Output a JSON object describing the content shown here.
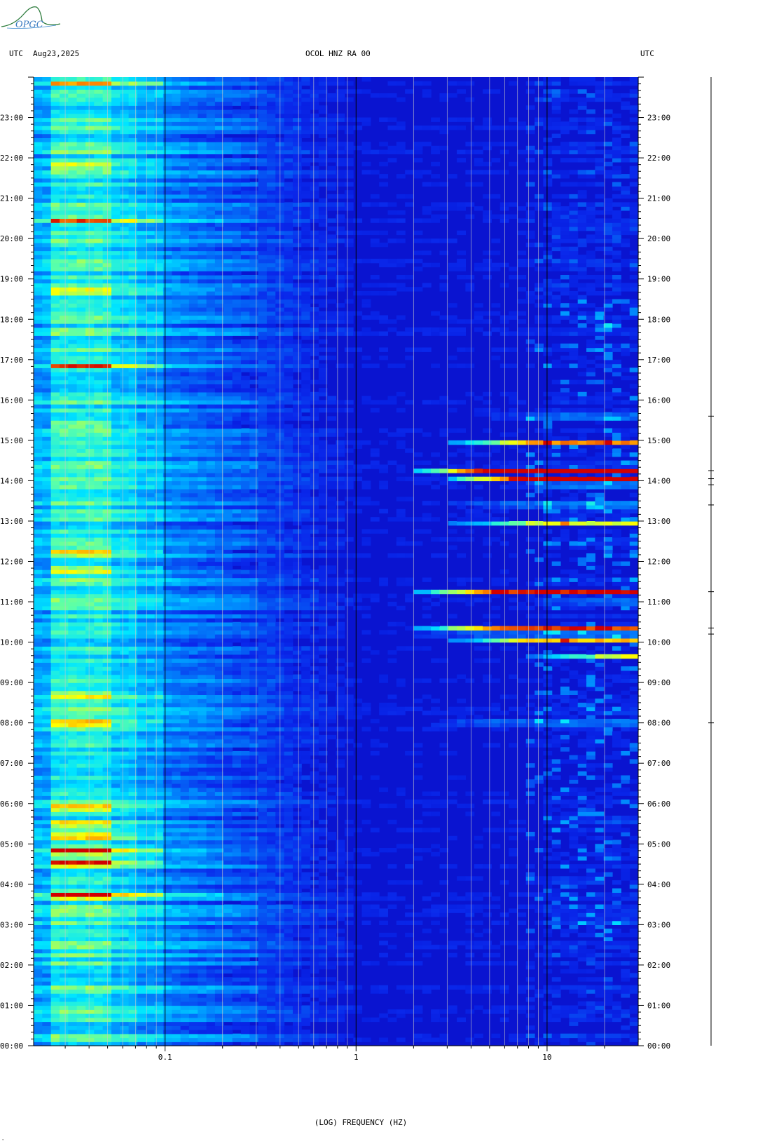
{
  "header": {
    "left_label": "UTC",
    "date": "Aug23,2025",
    "station": "OCOL HNZ RA 00",
    "right_label": "UTC"
  },
  "logo": {
    "text": "OPGC",
    "color": "#2a7a3a"
  },
  "footer_mark": "ʽ",
  "chart_data": {
    "type": "heatmap",
    "title": "OCOL HNZ RA 00",
    "xlabel": "(LOG) FREQUENCY (HZ)",
    "ylabel": "",
    "x_scale": "log",
    "xlim": [
      0.0205,
      30
    ],
    "ylim": [
      "00:00",
      "24:00"
    ],
    "x_tick_labels": [
      {
        "value": 0.1,
        "label": "0.1"
      },
      {
        "value": 1,
        "label": "1"
      },
      {
        "value": 10,
        "label": "10"
      }
    ],
    "y_tick_labels": [
      "00:00",
      "01:00",
      "02:00",
      "03:00",
      "04:00",
      "05:00",
      "06:00",
      "07:00",
      "08:00",
      "09:00",
      "10:00",
      "11:00",
      "12:00",
      "13:00",
      "14:00",
      "15:00",
      "16:00",
      "17:00",
      "18:00",
      "19:00",
      "20:00",
      "21:00",
      "22:00",
      "23:00"
    ],
    "colors": {
      "background": "#1018d8",
      "low": "#0000c8",
      "mid": "#00e0ff",
      "high": "#ffff00",
      "peak": "#e00000"
    },
    "events": [
      {
        "time_h": 15.6,
        "fmin": 4,
        "fmax": 30,
        "level": 0.95
      },
      {
        "time_h": 14.95,
        "fmin": 3,
        "fmax": 30,
        "level": 0.7
      },
      {
        "time_h": 14.25,
        "fmin": 2,
        "fmax": 30,
        "level": 0.95
      },
      {
        "time_h": 14.05,
        "fmin": 3,
        "fmax": 30,
        "level": 0.9
      },
      {
        "time_h": 13.9,
        "fmin": 6,
        "fmax": 30,
        "level": 0.85
      },
      {
        "time_h": 13.4,
        "fmin": 3,
        "fmax": 30,
        "level": 0.9
      },
      {
        "time_h": 12.95,
        "fmin": 3,
        "fmax": 30,
        "level": 0.6
      },
      {
        "time_h": 11.25,
        "fmin": 2,
        "fmax": 30,
        "level": 0.85
      },
      {
        "time_h": 11.0,
        "fmin": 8,
        "fmax": 30,
        "level": 0.6
      },
      {
        "time_h": 10.35,
        "fmin": 2,
        "fmax": 30,
        "level": 0.8
      },
      {
        "time_h": 10.2,
        "fmin": 2,
        "fmax": 30,
        "level": 0.9
      },
      {
        "time_h": 10.05,
        "fmin": 3,
        "fmax": 30,
        "level": 0.7
      },
      {
        "time_h": 9.65,
        "fmin": 8,
        "fmax": 30,
        "level": 0.6
      },
      {
        "time_h": 8.0,
        "fmin": 2,
        "fmax": 30,
        "level": 0.95
      },
      {
        "time_h": 20.3,
        "fmin": 8,
        "fmax": 30,
        "level": 0.5
      },
      {
        "time_h": 17.85,
        "fmin": 18,
        "fmax": 25,
        "level": 0.6
      },
      {
        "time_h": 5.6,
        "fmin": 8,
        "fmax": 30,
        "level": 0.5
      },
      {
        "time_h": 4.1,
        "fmin": 8,
        "fmax": 20,
        "level": 0.4
      },
      {
        "time_h": 3.1,
        "fmin": 8,
        "fmax": 30,
        "level": 0.4
      }
    ],
    "low_freq_events": [
      {
        "time_h": 8.0,
        "level": 1.0
      },
      {
        "time_h": 4.85,
        "level": 1.0
      },
      {
        "time_h": 4.55,
        "level": 0.95
      },
      {
        "time_h": 3.75,
        "level": 0.9
      },
      {
        "time_h": 5.2,
        "level": 0.8
      },
      {
        "time_h": 5.5,
        "level": 0.75
      },
      {
        "time_h": 5.9,
        "level": 0.75
      },
      {
        "time_h": 12.25,
        "level": 0.75
      },
      {
        "time_h": 11.8,
        "level": 0.7
      },
      {
        "time_h": 16.85,
        "level": 0.7
      },
      {
        "time_h": 15.4,
        "level": 0.6
      },
      {
        "time_h": 20.45,
        "level": 0.6
      },
      {
        "time_h": 21.8,
        "level": 0.6
      },
      {
        "time_h": 23.85,
        "level": 0.55
      },
      {
        "time_h": 18.7,
        "level": 0.55
      },
      {
        "time_h": 8.7,
        "level": 0.6
      }
    ]
  }
}
